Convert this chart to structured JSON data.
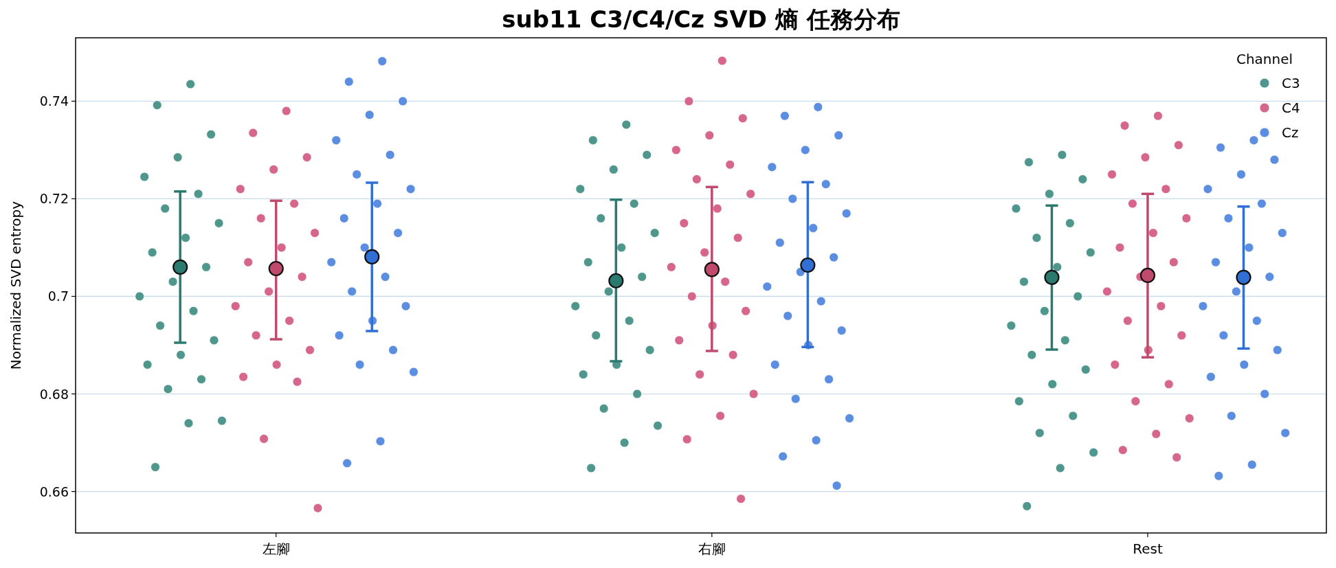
{
  "chart_data": {
    "type": "scatter",
    "title": "sub11 C3/C4/Cz SVD 熵 任務分布",
    "ylabel": "Normalized SVD entropy",
    "legend_title": "Channel",
    "legend": "top right",
    "grid": "y",
    "marker": "circle",
    "categories": [
      "左腳",
      "右腳",
      "Rest"
    ],
    "ylim": [
      0.6515,
      0.753
    ],
    "yticks": [
      0.66,
      0.68,
      0.7,
      0.72,
      0.74
    ],
    "series": [
      {
        "name": "C3",
        "color": "#4f978d",
        "x": [
          "左腳",
          "左腳",
          "左腳",
          "左腳",
          "左腳",
          "左腳",
          "左腳",
          "左腳",
          "左腳",
          "左腳",
          "左腳",
          "左腳",
          "左腳",
          "左腳",
          "左腳",
          "左腳",
          "左腳",
          "左腳",
          "左腳",
          "左腳",
          "左腳",
          "左腳",
          "左腳",
          "右腳",
          "右腳",
          "右腳",
          "右腳",
          "右腳",
          "右腳",
          "右腳",
          "右腳",
          "右腳",
          "右腳",
          "右腳",
          "右腳",
          "右腳",
          "右腳",
          "右腳",
          "右腳",
          "右腳",
          "右腳",
          "右腳",
          "右腳",
          "右腳",
          "右腳",
          "右腳",
          "Rest",
          "Rest",
          "Rest",
          "Rest",
          "Rest",
          "Rest",
          "Rest",
          "Rest",
          "Rest",
          "Rest",
          "Rest",
          "Rest",
          "Rest",
          "Rest",
          "Rest",
          "Rest",
          "Rest",
          "Rest",
          "Rest",
          "Rest",
          "Rest",
          "Rest",
          "Rest"
        ],
        "values": [
          0.7435,
          0.7392,
          0.7332,
          0.7285,
          0.7245,
          0.721,
          0.718,
          0.715,
          0.712,
          0.709,
          0.706,
          0.703,
          0.7,
          0.697,
          0.694,
          0.691,
          0.688,
          0.686,
          0.683,
          0.681,
          0.6745,
          0.674,
          0.665,
          0.7352,
          0.732,
          0.729,
          0.726,
          0.722,
          0.719,
          0.716,
          0.713,
          0.71,
          0.707,
          0.704,
          0.701,
          0.698,
          0.695,
          0.692,
          0.689,
          0.686,
          0.684,
          0.68,
          0.677,
          0.6735,
          0.67,
          0.6648,
          0.729,
          0.7275,
          0.724,
          0.721,
          0.718,
          0.715,
          0.712,
          0.709,
          0.706,
          0.703,
          0.7,
          0.697,
          0.694,
          0.691,
          0.688,
          0.685,
          0.682,
          0.6785,
          0.6755,
          0.672,
          0.668,
          0.6648,
          0.657
        ]
      },
      {
        "name": "C4",
        "color": "#d6668a",
        "x": [
          "左腳",
          "左腳",
          "左腳",
          "左腳",
          "左腳",
          "左腳",
          "左腳",
          "左腳",
          "左腳",
          "左腳",
          "左腳",
          "左腳",
          "左腳",
          "左腳",
          "左腳",
          "左腳",
          "左腳",
          "左腳",
          "左腳",
          "左腳",
          "左腳",
          "右腳",
          "右腳",
          "右腳",
          "右腳",
          "右腳",
          "右腳",
          "右腳",
          "右腳",
          "右腳",
          "右腳",
          "右腳",
          "右腳",
          "右腳",
          "右腳",
          "右腳",
          "右腳",
          "右腳",
          "右腳",
          "右腳",
          "右腳",
          "右腳",
          "右腳",
          "右腳",
          "右腳",
          "Rest",
          "Rest",
          "Rest",
          "Rest",
          "Rest",
          "Rest",
          "Rest",
          "Rest",
          "Rest",
          "Rest",
          "Rest",
          "Rest",
          "Rest",
          "Rest",
          "Rest",
          "Rest",
          "Rest",
          "Rest",
          "Rest",
          "Rest",
          "Rest",
          "Rest",
          "Rest",
          "Rest"
        ],
        "values": [
          0.738,
          0.7335,
          0.7285,
          0.726,
          0.722,
          0.719,
          0.716,
          0.713,
          0.71,
          0.707,
          0.704,
          0.701,
          0.698,
          0.695,
          0.692,
          0.689,
          0.686,
          0.6835,
          0.6825,
          0.6708,
          0.6566,
          0.7483,
          0.74,
          0.7365,
          0.733,
          0.73,
          0.727,
          0.724,
          0.721,
          0.718,
          0.715,
          0.712,
          0.709,
          0.706,
          0.703,
          0.7,
          0.697,
          0.694,
          0.691,
          0.688,
          0.684,
          0.68,
          0.6755,
          0.6707,
          0.6585,
          0.737,
          0.735,
          0.731,
          0.7285,
          0.725,
          0.722,
          0.719,
          0.716,
          0.713,
          0.71,
          0.707,
          0.704,
          0.701,
          0.698,
          0.695,
          0.692,
          0.689,
          0.686,
          0.682,
          0.6785,
          0.675,
          0.6718,
          0.6685,
          0.667
        ]
      },
      {
        "name": "Cz",
        "color": "#5b8de0",
        "x": [
          "左腳",
          "左腳",
          "左腳",
          "左腳",
          "左腳",
          "左腳",
          "左腳",
          "左腳",
          "左腳",
          "左腳",
          "左腳",
          "左腳",
          "左腳",
          "左腳",
          "左腳",
          "左腳",
          "左腳",
          "左腳",
          "左腳",
          "左腳",
          "左腳",
          "左腳",
          "左腳",
          "右腳",
          "右腳",
          "右腳",
          "右腳",
          "右腳",
          "右腳",
          "右腳",
          "右腳",
          "右腳",
          "右腳",
          "右腳",
          "右腳",
          "右腳",
          "右腳",
          "右腳",
          "右腳",
          "右腳",
          "右腳",
          "右腳",
          "右腳",
          "右腳",
          "右腳",
          "右腳",
          "右腳",
          "Rest",
          "Rest",
          "Rest",
          "Rest",
          "Rest",
          "Rest",
          "Rest",
          "Rest",
          "Rest",
          "Rest",
          "Rest",
          "Rest",
          "Rest",
          "Rest",
          "Rest",
          "Rest",
          "Rest",
          "Rest",
          "Rest",
          "Rest",
          "Rest",
          "Rest",
          "Rest"
        ],
        "values": [
          0.7482,
          0.744,
          0.74,
          0.7372,
          0.732,
          0.729,
          0.725,
          0.722,
          0.719,
          0.716,
          0.713,
          0.71,
          0.707,
          0.704,
          0.701,
          0.698,
          0.695,
          0.692,
          0.689,
          0.686,
          0.6845,
          0.6703,
          0.6658,
          0.7388,
          0.737,
          0.733,
          0.73,
          0.7265,
          0.723,
          0.72,
          0.717,
          0.714,
          0.711,
          0.708,
          0.705,
          0.702,
          0.699,
          0.696,
          0.693,
          0.69,
          0.686,
          0.683,
          0.679,
          0.675,
          0.6705,
          0.6672,
          0.6612,
          0.732,
          0.7305,
          0.728,
          0.725,
          0.722,
          0.719,
          0.716,
          0.713,
          0.71,
          0.707,
          0.704,
          0.701,
          0.698,
          0.695,
          0.692,
          0.689,
          0.686,
          0.6835,
          0.68,
          0.6755,
          0.672,
          0.6655,
          0.6632
        ]
      },
      {
        "color": "#2b7a70",
        "x": [
          "左腳",
          "右腳",
          "Rest"
        ],
        "values": [
          0.706,
          0.7032,
          0.7039
        ],
        "errors": [
          [
            0.6905,
            0.7215
          ],
          [
            0.6867,
            0.7198
          ],
          [
            0.6891,
            0.7186
          ]
        ]
      },
      {
        "color": "#c04a6c",
        "x": [
          "左腳",
          "右腳",
          "Rest"
        ],
        "values": [
          0.7057,
          0.7055,
          0.7043
        ],
        "errors": [
          [
            0.6912,
            0.7196
          ],
          [
            0.6888,
            0.7224
          ],
          [
            0.6875,
            0.721
          ]
        ]
      },
      {
        "color": "#2f6fd6",
        "x": [
          "左腳",
          "右腳",
          "Rest"
        ],
        "values": [
          0.7081,
          0.7064,
          0.7039
        ],
        "errors": [
          [
            0.6929,
            0.7233
          ],
          [
            0.6896,
            0.7234
          ],
          [
            0.6893,
            0.7184
          ]
        ]
      }
    ]
  }
}
